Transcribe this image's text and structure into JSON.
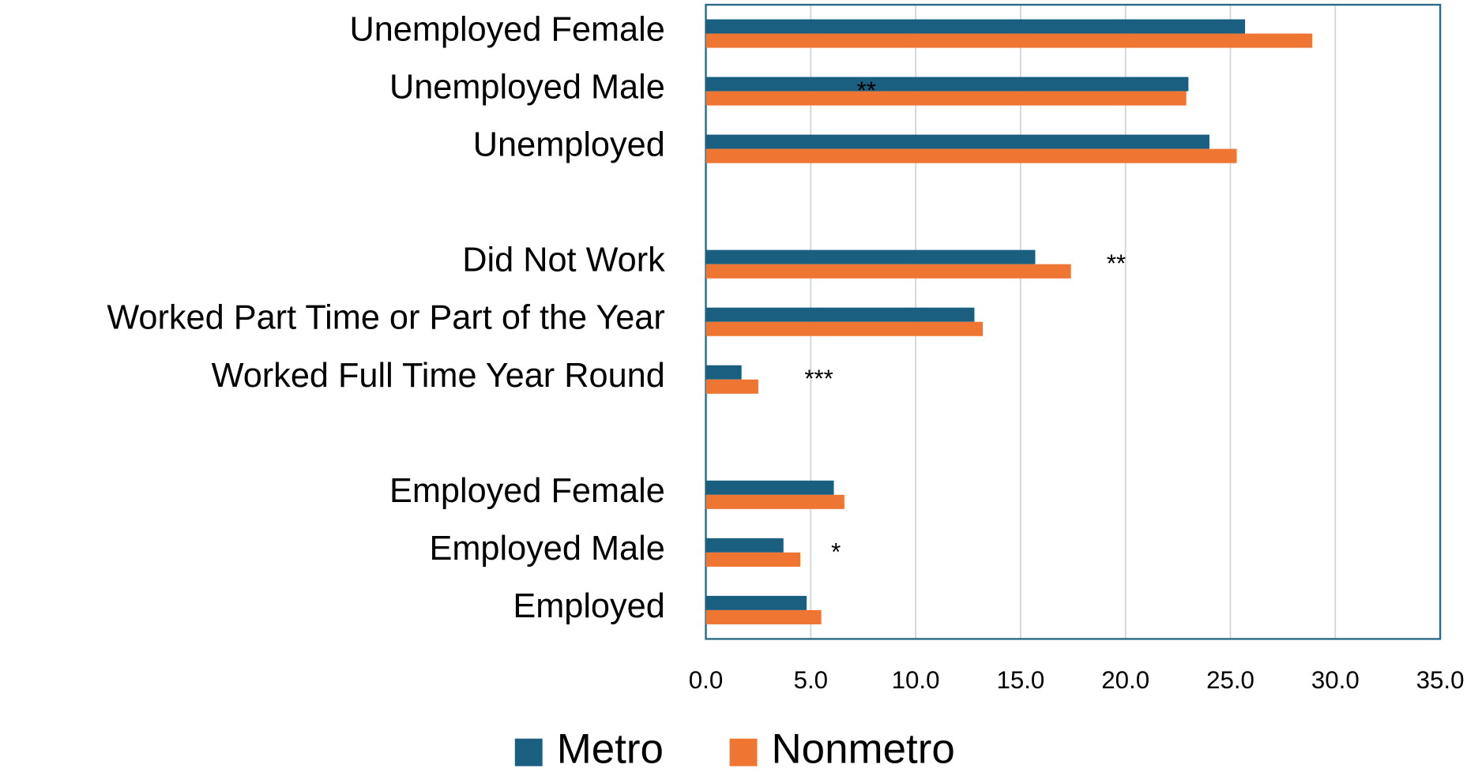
{
  "chart_data": {
    "type": "bar",
    "orientation": "horizontal",
    "categories": [
      "Unemployed Female",
      "Unemployed Male",
      "Unemployed",
      null,
      "Did Not Work",
      "Worked Part Time or Part of the Year",
      "Worked Full Time Year Round",
      null,
      "Employed Female",
      "Employed Male",
      "Employed"
    ],
    "series": [
      {
        "name": "Metro",
        "color": "#1a5e80",
        "values": [
          25.7,
          23.0,
          24.0,
          null,
          15.7,
          12.8,
          1.7,
          null,
          6.1,
          3.7,
          4.8
        ]
      },
      {
        "name": "Nonmetro",
        "color": "#ef7533",
        "values": [
          28.9,
          22.9,
          25.3,
          null,
          17.4,
          13.2,
          2.5,
          null,
          6.6,
          4.5,
          5.5
        ]
      }
    ],
    "annotations": [
      null,
      "**",
      null,
      null,
      "**",
      null,
      "***",
      null,
      null,
      "*",
      null
    ],
    "xlim": [
      0,
      35
    ],
    "xticks": [
      {
        "value": 0,
        "label": "0.0"
      },
      {
        "value": 5,
        "label": "5.0"
      },
      {
        "value": 10,
        "label": "10.0"
      },
      {
        "value": 15,
        "label": "15.0"
      },
      {
        "value": 20,
        "label": "20.0"
      },
      {
        "value": 25,
        "label": "25.0"
      },
      {
        "value": 30,
        "label": "30.0"
      },
      {
        "value": 35,
        "label": "35.0"
      }
    ],
    "grid": true,
    "legend": "bottom"
  }
}
